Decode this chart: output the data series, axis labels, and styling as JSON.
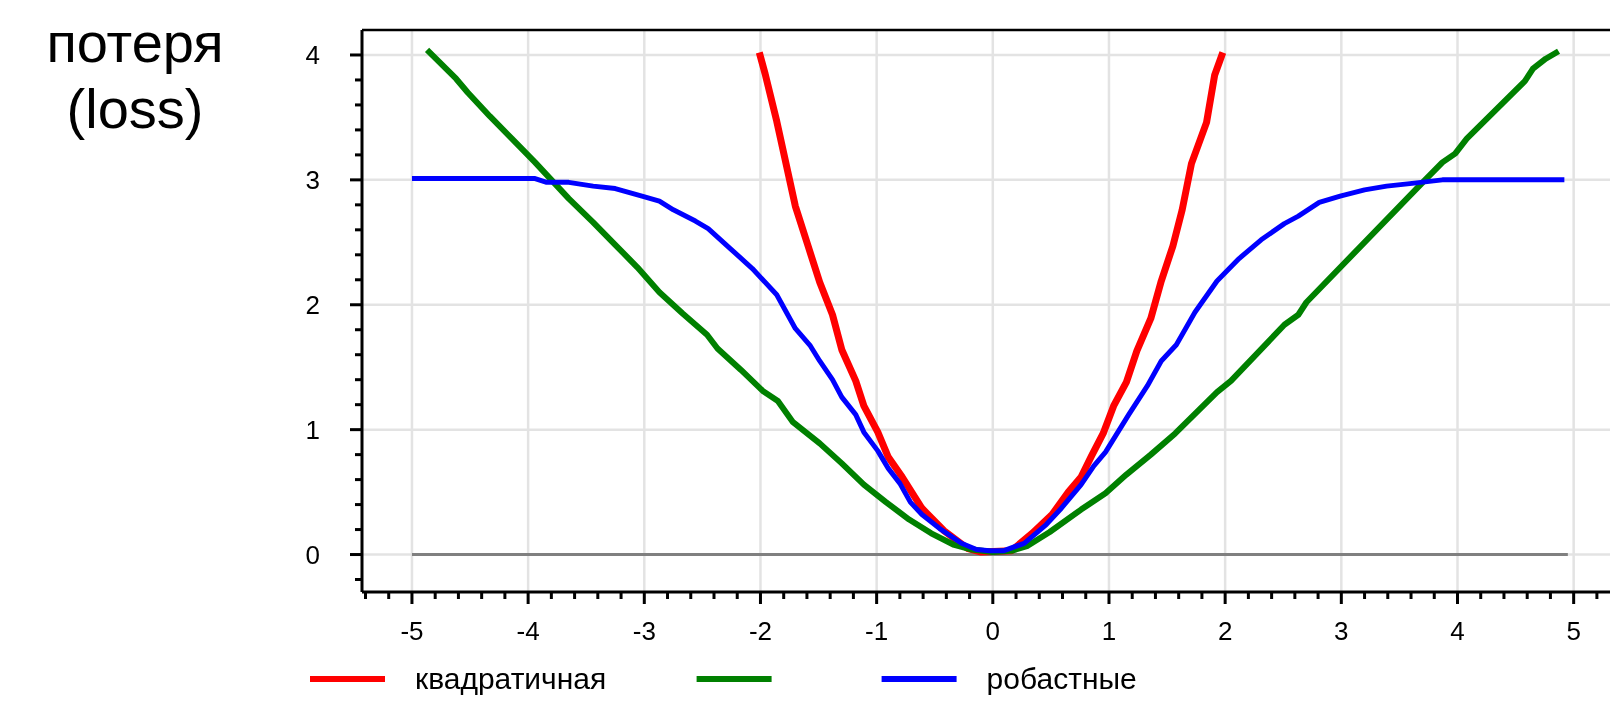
{
  "chart_data": {
    "type": "line",
    "ylabel": "потеря (loss)",
    "xlim": [
      -5.43,
      5.33
    ],
    "ylim": [
      -0.3,
      4.2
    ],
    "xticks": [
      {
        "value": -5.4,
        "label": null
      },
      {
        "value": -5.2,
        "label": null
      },
      -5,
      {
        "value": -4.8,
        "label": null
      },
      {
        "value": -4.6,
        "label": null
      },
      {
        "value": -4.4,
        "label": null
      },
      {
        "value": -4.2,
        "label": null
      },
      -4,
      {
        "value": -3.8,
        "label": null
      },
      {
        "value": -3.6,
        "label": null
      },
      {
        "value": -3.4,
        "label": null
      },
      {
        "value": -3.2,
        "label": null
      },
      -3,
      {
        "value": -2.8,
        "label": null
      },
      {
        "value": -2.6,
        "label": null
      },
      {
        "value": -2.4,
        "label": null
      },
      {
        "value": -2.2,
        "label": null
      },
      -2,
      {
        "value": -1.8,
        "label": null
      },
      {
        "value": -1.6,
        "label": null
      },
      {
        "value": -1.4,
        "label": null
      },
      {
        "value": -1.2,
        "label": null
      },
      -1,
      {
        "value": -0.8,
        "label": null
      },
      {
        "value": -0.6,
        "label": null
      },
      {
        "value": -0.4,
        "label": null
      },
      {
        "value": -0.2,
        "label": null
      },
      0,
      {
        "value": 0.2,
        "label": null
      },
      {
        "value": 0.4,
        "label": null
      },
      {
        "value": 0.6,
        "label": null
      },
      {
        "value": 0.8,
        "label": null
      },
      1,
      {
        "value": 1.2,
        "label": null
      },
      {
        "value": 1.4,
        "label": null
      },
      {
        "value": 1.6,
        "label": null
      },
      {
        "value": 1.8,
        "label": null
      },
      2,
      {
        "value": 2.2,
        "label": null
      },
      {
        "value": 2.4,
        "label": null
      },
      {
        "value": 2.6,
        "label": null
      },
      {
        "value": 2.8,
        "label": null
      },
      3,
      {
        "value": 3.2,
        "label": null
      },
      {
        "value": 3.4,
        "label": null
      },
      {
        "value": 3.6,
        "label": null
      },
      {
        "value": 3.8,
        "label": null
      },
      4,
      {
        "value": 4.2,
        "label": null
      },
      {
        "value": 4.4,
        "label": null
      },
      {
        "value": 4.6,
        "label": null
      },
      {
        "value": 4.8,
        "label": null
      },
      5,
      {
        "value": 5.2,
        "label": null
      }
    ],
    "yticks": [
      {
        "value": -0.2,
        "label": null
      },
      0,
      {
        "value": 0.2,
        "label": null
      },
      {
        "value": 0.4,
        "label": null
      },
      {
        "value": 0.6,
        "label": null
      },
      {
        "value": 0.8,
        "label": null
      },
      1,
      {
        "value": 1.2,
        "label": null
      },
      {
        "value": 1.4,
        "label": null
      },
      {
        "value": 1.6,
        "label": null
      },
      {
        "value": 1.8,
        "label": null
      },
      2,
      {
        "value": 2.2,
        "label": null
      },
      {
        "value": 2.4,
        "label": null
      },
      {
        "value": 2.6,
        "label": null
      },
      {
        "value": 2.8,
        "label": null
      },
      3,
      {
        "value": 3.2,
        "label": null
      },
      {
        "value": 3.4,
        "label": null
      },
      {
        "value": 3.6,
        "label": null
      },
      {
        "value": 3.8,
        "label": null
      },
      4
    ],
    "grid": true,
    "legend": "bottom",
    "line_style": "solid",
    "marker": "none",
    "ref_lines": [
      {
        "axis": "y",
        "value": 0,
        "label": null,
        "color": "#808080"
      }
    ],
    "series": [
      {
        "name": "квадратичная",
        "color": "#ff0000",
        "x": [
          -2.01,
          -1.96,
          -1.86,
          -1.7,
          -1.59,
          -1.49,
          -1.38,
          -1.3,
          -1.18,
          -1.11,
          -0.99,
          -0.9,
          -0.78,
          -0.61,
          -0.42,
          -0.22,
          -0.1,
          0.16,
          0.34,
          0.51,
          0.65,
          0.76,
          0.85,
          0.95,
          1.04,
          1.15,
          1.24,
          1.36,
          1.45,
          1.55,
          1.63,
          1.71,
          1.84,
          1.91,
          1.98
        ],
        "values": [
          4.02,
          3.85,
          3.47,
          2.79,
          2.47,
          2.18,
          1.92,
          1.64,
          1.39,
          1.19,
          0.98,
          0.78,
          0.62,
          0.37,
          0.19,
          0.05,
          0.02,
          0.03,
          0.17,
          0.32,
          0.5,
          0.62,
          0.79,
          0.97,
          1.19,
          1.38,
          1.63,
          1.89,
          2.19,
          2.47,
          2.76,
          3.13,
          3.46,
          3.84,
          4.02
        ]
      },
      {
        "color": "#008000",
        "x": [
          -4.87,
          -4.62,
          -4.52,
          -4.33,
          -4.14,
          -3.94,
          -3.84,
          -3.65,
          -3.44,
          -3.25,
          -3.06,
          -2.87,
          -2.67,
          -2.46,
          -2.37,
          -2.17,
          -1.98,
          -1.85,
          -1.72,
          -1.49,
          -1.3,
          -1.11,
          -0.92,
          -0.72,
          -0.53,
          -0.34,
          -0.18,
          0.0,
          0.16,
          0.3,
          0.49,
          0.76,
          0.97,
          1.15,
          1.36,
          1.57,
          1.93,
          2.05,
          2.51,
          2.63,
          2.7,
          3.69,
          3.87,
          3.98,
          4.08,
          4.58,
          4.65,
          4.76,
          4.87
        ],
        "values": [
          4.04,
          3.81,
          3.7,
          3.51,
          3.33,
          3.14,
          3.04,
          2.85,
          2.66,
          2.48,
          2.3,
          2.1,
          1.93,
          1.76,
          1.65,
          1.48,
          1.31,
          1.23,
          1.06,
          0.89,
          0.73,
          0.56,
          0.42,
          0.28,
          0.17,
          0.08,
          0.04,
          0.02,
          0.03,
          0.07,
          0.18,
          0.36,
          0.49,
          0.64,
          0.8,
          0.97,
          1.3,
          1.39,
          1.84,
          1.92,
          2.02,
          2.97,
          3.14,
          3.21,
          3.33,
          3.79,
          3.89,
          3.97,
          4.03
        ]
      },
      {
        "name": "робастные",
        "color": "#0000ff",
        "x": [
          -5,
          -3.94,
          -3.84,
          -3.65,
          -3.44,
          -3.25,
          -3.02,
          -2.87,
          -2.75,
          -2.56,
          -2.45,
          -2.26,
          -2.07,
          -1.86,
          -1.7,
          -1.57,
          -1.49,
          -1.38,
          -1.3,
          -1.18,
          -1.11,
          -0.99,
          -0.9,
          -0.8,
          -0.71,
          -0.61,
          -0.46,
          -0.27,
          -0.14,
          -0.03,
          0.09,
          0.27,
          0.46,
          0.58,
          0.76,
          0.87,
          0.97,
          1.17,
          1.33,
          1.45,
          1.58,
          1.74,
          1.93,
          2.12,
          2.31,
          2.51,
          2.63,
          2.81,
          2.99,
          3.2,
          3.39,
          3.59,
          3.87,
          4.92
        ],
        "values": [
          3.01,
          3.01,
          2.98,
          2.98,
          2.95,
          2.93,
          2.87,
          2.83,
          2.76,
          2.67,
          2.61,
          2.45,
          2.29,
          2.08,
          1.81,
          1.67,
          1.55,
          1.4,
          1.26,
          1.12,
          0.98,
          0.83,
          0.69,
          0.57,
          0.42,
          0.32,
          0.21,
          0.09,
          0.04,
          0.03,
          0.03,
          0.09,
          0.24,
          0.36,
          0.56,
          0.71,
          0.82,
          1.12,
          1.35,
          1.55,
          1.68,
          1.94,
          2.19,
          2.37,
          2.52,
          2.65,
          2.71,
          2.82,
          2.87,
          2.92,
          2.95,
          2.97,
          3.0,
          3.0
        ]
      }
    ]
  }
}
